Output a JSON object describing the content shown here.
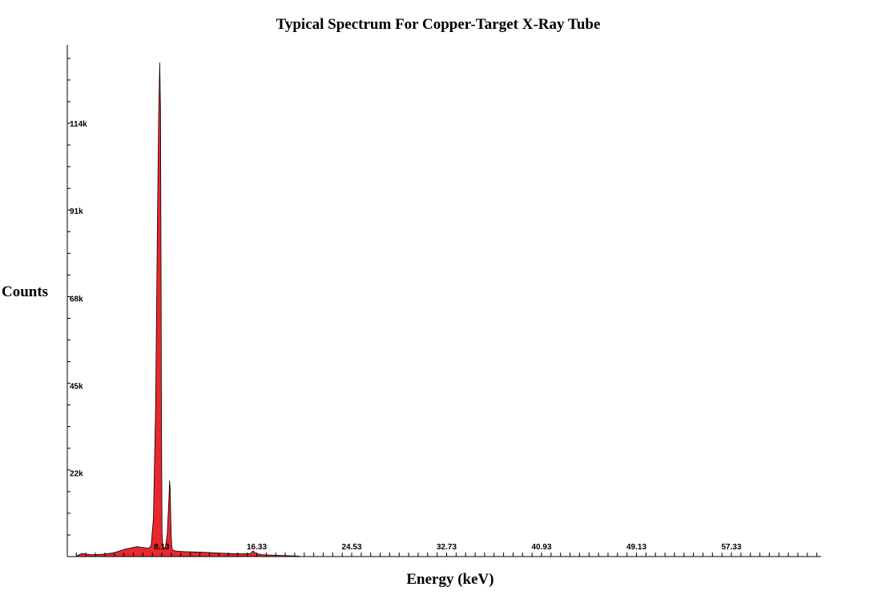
{
  "chart_data": {
    "type": "area",
    "title": "Typical Spectrum For Copper-Target X-Ray Tube",
    "xlabel": "Energy (keV)",
    "ylabel": "Counts",
    "x_ticks": [
      "8.13",
      "16.33",
      "24.53",
      "32.73",
      "40.93",
      "49.13",
      "57.33"
    ],
    "y_ticks": [
      "22k",
      "45k",
      "68k",
      "91k",
      "114k"
    ],
    "xlim": [
      0.75,
      65.5
    ],
    "ylim": [
      0,
      130000
    ],
    "grid": false,
    "fill_color": "#e8282e",
    "stroke_color": "#000000",
    "series": [
      {
        "x": [
          0.8,
          1.2,
          2.0,
          3.0,
          4.0,
          5.0,
          6.0,
          6.5,
          7.0,
          7.2,
          7.4,
          7.6,
          7.75,
          7.85,
          7.95,
          8.02,
          8.06,
          8.1,
          8.15,
          8.22,
          8.3,
          8.45,
          8.6,
          8.75,
          8.8,
          8.85,
          8.9,
          8.95,
          9.0,
          9.05,
          9.15,
          9.3,
          9.6,
          10.0,
          11.0,
          12.0,
          13.0,
          14.0,
          15.0,
          15.8,
          16.0,
          16.2,
          16.4,
          16.8,
          17.5,
          18.5,
          19.5,
          20.0
        ],
        "y": [
          200,
          800,
          500,
          600,
          1000,
          2000,
          2600,
          2400,
          2200,
          2800,
          10000,
          40000,
          88000,
          115000,
          130000,
          118000,
          80000,
          35000,
          6000,
          2500,
          2200,
          2500,
          6000,
          16000,
          20000,
          18000,
          11000,
          5000,
          2600,
          1800,
          1600,
          1500,
          1400,
          1300,
          1200,
          1100,
          900,
          800,
          700,
          800,
          1500,
          1000,
          700,
          500,
          400,
          300,
          200,
          100
        ]
      }
    ]
  }
}
